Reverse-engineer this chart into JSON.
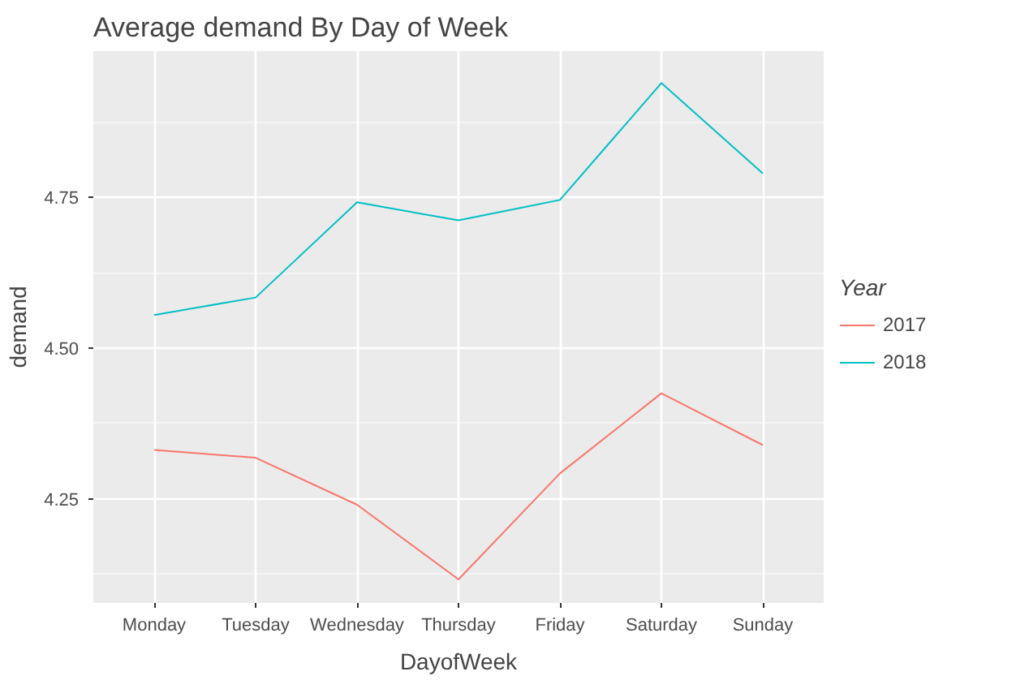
{
  "chart_data": {
    "type": "line",
    "title": "Average demand By Day of Week",
    "xlabel": "DayofWeek",
    "ylabel": "demand",
    "legend_title": "Year",
    "categories": [
      "Monday",
      "Tuesday",
      "Wednesday",
      "Thursday",
      "Friday",
      "Saturday",
      "Sunday"
    ],
    "series": [
      {
        "name": "2017",
        "color": "#f8766d",
        "values": [
          4.331,
          4.318,
          4.24,
          4.116,
          4.292,
          4.425,
          4.339
        ]
      },
      {
        "name": "2018",
        "color": "#00bfc4",
        "values": [
          4.555,
          4.584,
          4.742,
          4.712,
          4.746,
          4.94,
          4.79
        ]
      }
    ],
    "ylim": [
      4.077,
      4.993
    ],
    "yticks": [
      4.25,
      {
        "value": 4.5,
        "label": "4.50"
      },
      4.75
    ],
    "grid": true,
    "legend": "right",
    "marker": "none",
    "line_style": "solid"
  }
}
